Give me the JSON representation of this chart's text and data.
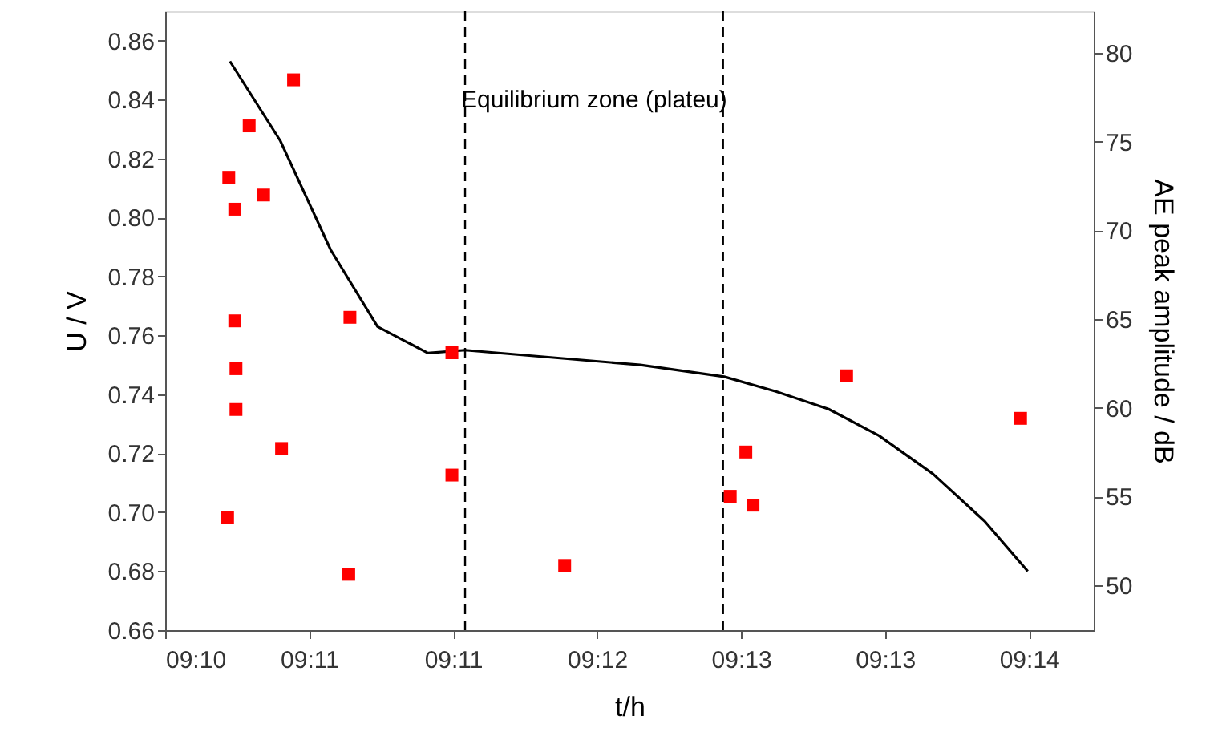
{
  "chart_data": {
    "type": "line",
    "xlabel": "t/h",
    "ylabel": "U / V",
    "y2label": "AE peak amplitude / dB",
    "xlim": [
      9.1642,
      9.2416
    ],
    "xticks": [
      {
        "value": 9.1642,
        "label": "09:10"
      },
      {
        "value": 9.1762,
        "label": "09:11"
      },
      {
        "value": 9.1882,
        "label": "09:11"
      },
      {
        "value": 9.2002,
        "label": "09:12"
      },
      {
        "value": 9.2122,
        "label": "09:13"
      },
      {
        "value": 9.2242,
        "label": "09:13"
      },
      {
        "value": 9.2362,
        "label": "09:14"
      }
    ],
    "ylim": [
      0.66,
      0.87
    ],
    "yticks": [
      0.66,
      0.68,
      {
        "value": 0.7,
        "label": "0.70"
      },
      0.72,
      0.74,
      0.76,
      0.78,
      {
        "value": 0.8,
        "label": "0.80"
      },
      0.82,
      0.84,
      0.86
    ],
    "y2lim": [
      47.45,
      82.37
    ],
    "y2ticks": [
      50,
      55,
      60,
      65,
      70,
      75,
      80
    ],
    "grid": false,
    "series": [
      {
        "color": "#000000",
        "marker": "none",
        "line_style": "solid",
        "x": [
          9.1696,
          9.1738,
          9.178,
          9.1819,
          9.1861,
          9.1892,
          9.2038,
          9.2108,
          9.2151,
          9.2195,
          9.2237,
          9.2282,
          9.2325,
          9.2361
        ],
        "values": [
          0.853,
          0.826,
          0.789,
          0.763,
          0.754,
          0.755,
          0.75,
          0.746,
          0.741,
          0.735,
          0.726,
          0.713,
          0.697,
          0.68
        ]
      },
      {
        "type": "scatter",
        "axis": "y2",
        "color": "#ff0000",
        "marker": "square",
        "x": [
          9.1749,
          9.1712,
          9.1695,
          9.1724,
          9.17,
          9.17,
          9.1796,
          9.1881,
          9.1701,
          9.1701,
          9.1739,
          9.1881,
          9.1694,
          9.1795,
          9.1975,
          9.221,
          9.2355,
          9.2126,
          9.2113,
          9.2132
        ],
        "values": [
          78.5,
          75.9,
          73.0,
          72.0,
          71.2,
          64.9,
          65.1,
          63.1,
          62.2,
          59.9,
          57.7,
          56.2,
          53.8,
          50.6,
          51.1,
          61.8,
          59.4,
          57.5,
          55.0,
          54.5
        ]
      }
    ],
    "ref_lines": [
      {
        "axis": "x",
        "value": 9.1892,
        "color": "#000000",
        "line_style": "dashed"
      },
      {
        "axis": "x",
        "value": 9.2107,
        "color": "#000000",
        "line_style": "dashed"
      }
    ],
    "annotations": [
      "Equilibrium zone (plateu)"
    ]
  }
}
